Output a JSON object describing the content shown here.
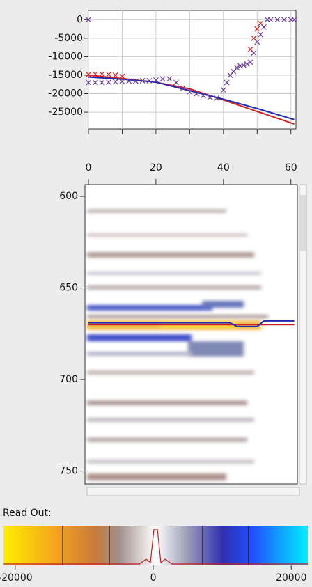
{
  "top_plot": {
    "type": "line",
    "xlim": [
      0,
      61.5
    ],
    "ylim": [
      -29500,
      2500
    ],
    "xticks": [
      0,
      10,
      20,
      30,
      40,
      50,
      60
    ],
    "yticks": [
      0,
      -5000,
      -10000,
      -15000,
      -20000,
      -25000
    ],
    "grid": true,
    "series": [
      {
        "color": "#d42020",
        "x": [
          0,
          10,
          20,
          30,
          40,
          50,
          61
        ],
        "values": [
          -15000,
          -15900,
          -16900,
          -18700,
          -21700,
          -24800,
          -28200
        ]
      },
      {
        "color": "#1f2ab8",
        "x": [
          0,
          10,
          20,
          30,
          40,
          50,
          61
        ],
        "values": [
          -15500,
          -16100,
          -16900,
          -19200,
          -21500,
          -24000,
          -27000
        ]
      },
      {
        "color": "#d42020",
        "marker": "x",
        "x": [
          0,
          2,
          4,
          6,
          8,
          10,
          48,
          49,
          50,
          51
        ],
        "values": [
          -14800,
          -14700,
          -14700,
          -14800,
          -15000,
          -15300,
          -8000,
          -5000,
          -2500,
          -1000
        ]
      },
      {
        "color": "#6a3a9a",
        "marker": "x",
        "x": [
          0,
          0,
          2,
          4,
          6,
          8,
          10,
          12,
          14,
          16,
          18,
          20,
          22,
          24,
          26,
          28,
          30,
          32,
          34,
          36,
          38,
          40,
          41,
          42,
          43,
          44,
          45,
          46,
          47,
          48,
          49,
          50,
          51,
          52,
          53,
          54,
          56,
          58,
          60,
          61
        ],
        "values": [
          0,
          -17000,
          -17000,
          -17000,
          -16900,
          -16800,
          -16700,
          -16600,
          -16600,
          -16500,
          -16500,
          -16300,
          -16000,
          -16000,
          -17000,
          -18500,
          -19500,
          -20000,
          -20500,
          -21000,
          -21200,
          -19000,
          -17000,
          -15000,
          -14000,
          -13000,
          -12500,
          -12300,
          -12000,
          -11500,
          -9000,
          -6000,
          -4000,
          -2000,
          0,
          0,
          0,
          0,
          0,
          0
        ]
      }
    ]
  },
  "section": {
    "type": "image",
    "xlim": [
      0,
      61.5
    ],
    "ylim": [
      757,
      593.5
    ],
    "xticks": [
      0,
      20,
      40,
      60
    ],
    "yticks": [
      600,
      650,
      700,
      750
    ],
    "series": [
      {
        "color": "#d42020",
        "x": [
          0,
          61
        ],
        "values": [
          670,
          670
        ]
      },
      {
        "color": "#1f2ab8",
        "x": [
          0,
          42,
          44,
          50,
          52,
          61
        ],
        "values": [
          669,
          669,
          671,
          671,
          668,
          668
        ]
      }
    ]
  },
  "readout_label": "Read Out:",
  "colorbar": {
    "type": "colorbar",
    "xlim": [
      -21700,
      22400
    ],
    "xticks": [
      -20000,
      0,
      20000
    ]
  }
}
